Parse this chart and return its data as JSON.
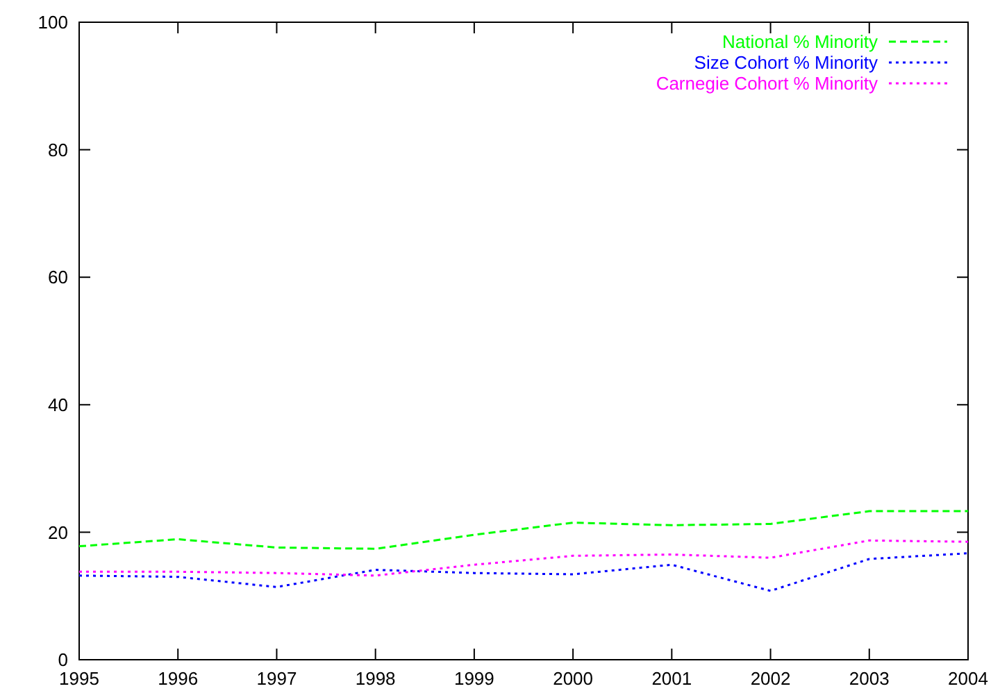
{
  "chart_data": {
    "type": "line",
    "x": [
      1995,
      1996,
      1997,
      1998,
      1999,
      2000,
      2001,
      2002,
      2003,
      2004
    ],
    "xlim": [
      1995,
      2004
    ],
    "xticks": [
      1995,
      1996,
      1997,
      1998,
      1999,
      2000,
      2001,
      2002,
      2003,
      2004
    ],
    "ylim": [
      0,
      100
    ],
    "yticks": [
      0,
      20,
      40,
      60,
      80,
      100
    ],
    "grid": false,
    "legend": "top right",
    "series": [
      {
        "name": "National % Minority",
        "color": "#00ff00",
        "line_style": "dashed",
        "values": [
          17.8,
          18.9,
          17.6,
          17.4,
          19.6,
          21.5,
          21.1,
          21.3,
          23.3,
          23.3
        ]
      },
      {
        "name": "Size Cohort % Minority",
        "color": "#0000ff",
        "line_style": "dotted",
        "values": [
          13.2,
          13.0,
          11.4,
          14.1,
          13.6,
          13.4,
          14.9,
          10.8,
          15.8,
          16.7
        ]
      },
      {
        "name": "Carnegie Cohort % Minority",
        "color": "#ff00ff",
        "line_style": "dotted",
        "values": [
          13.8,
          13.8,
          13.6,
          13.2,
          14.9,
          16.3,
          16.5,
          16.0,
          18.7,
          18.5
        ]
      }
    ]
  }
}
